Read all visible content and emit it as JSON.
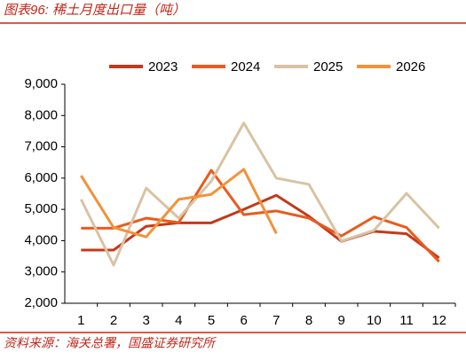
{
  "chart_data": {
    "type": "line",
    "title": "图表96:  稀土月度出口量（吨）",
    "source": "资料来源：海关总署，国盛证券研究所",
    "categories": [
      "1",
      "2",
      "3",
      "4",
      "5",
      "6",
      "7",
      "8",
      "9",
      "10",
      "11",
      "12"
    ],
    "series": [
      {
        "name": "2023",
        "color": "#c23a1a",
        "values": [
          3700,
          3700,
          4460,
          4570,
          4570,
          5000,
          5450,
          4780,
          3980,
          4300,
          4220,
          3450
        ]
      },
      {
        "name": "2024",
        "color": "#ea5a1e",
        "values": [
          4400,
          4400,
          4720,
          4580,
          6250,
          4830,
          4950,
          4720,
          4150,
          4760,
          4420,
          3330
        ]
      },
      {
        "name": "2025",
        "color": "#d8c3a3",
        "values": [
          5320,
          3220,
          5680,
          4720,
          5900,
          7760,
          6000,
          5800,
          3990,
          4330,
          5510,
          4400
        ]
      },
      {
        "name": "2026",
        "color": "#f2923a",
        "values": [
          6080,
          4420,
          4120,
          5320,
          5480,
          6280,
          4230,
          null,
          null,
          null,
          null,
          null
        ]
      }
    ],
    "ylim": [
      2000,
      9000
    ],
    "yticks": [
      {
        "value": 2000,
        "label": "2,000"
      },
      {
        "value": 3000,
        "label": "3,000"
      },
      {
        "value": 4000,
        "label": "4,000"
      },
      {
        "value": 5000,
        "label": "5,000"
      },
      {
        "value": 6000,
        "label": "6,000"
      },
      {
        "value": 7000,
        "label": "7,000"
      },
      {
        "value": 8000,
        "label": "8,000"
      },
      {
        "value": 9000,
        "label": "9,000"
      }
    ],
    "legend": "top"
  }
}
